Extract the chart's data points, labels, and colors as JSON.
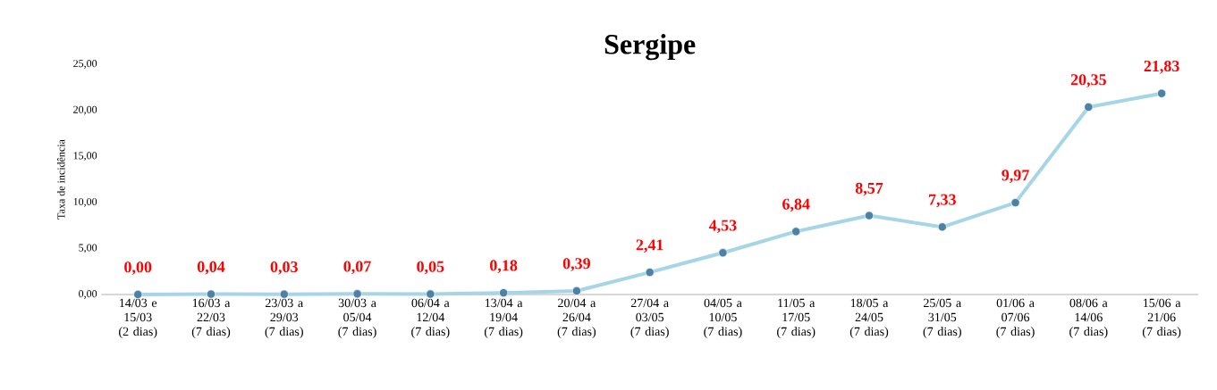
{
  "chart_data": {
    "type": "line",
    "title": "Sergipe",
    "ylabel": "Taxa de incidência",
    "categories": [
      "14/03 e 15/03 (2 dias)",
      "16/03 a 22/03 (7 dias)",
      "23/03 a 29/03 (7 dias)",
      "30/03 a 05/04 (7 dias)",
      "06/04 a 12/04 (7 dias)",
      "13/04 a 19/04 (7 dias)",
      "20/04 a 26/04 (7 dias)",
      "27/04 a 03/05 (7 dias)",
      "04/05 a 10/05 (7 dias)",
      "11/05 a 17/05 (7 dias)",
      "18/05 a 24/05 (7 dias)",
      "25/05 a 31/05 (7 dias)",
      "01/06 a 07/06 (7 dias)",
      "08/06 a 14/06 (7 dias)",
      "15/06 a 21/06 (7 dias)"
    ],
    "series": [
      {
        "color": "#a5d5e6",
        "values": [
          0.0,
          0.04,
          0.03,
          0.07,
          0.05,
          0.18,
          0.39,
          2.41,
          4.53,
          6.84,
          8.57,
          7.33,
          9.97,
          20.35,
          21.83
        ],
        "value_labels": [
          "0,00",
          "0,04",
          "0,03",
          "0,07",
          "0,05",
          "0,18",
          "0,39",
          "2,41",
          "4,53",
          "6,84",
          "8,57",
          "7,33",
          "9,97",
          "20,35",
          "21,83"
        ]
      }
    ],
    "ylim": [
      0,
      25
    ],
    "yticks": [
      {
        "value": 0,
        "label": "0,00"
      },
      {
        "value": 5,
        "label": "5,00"
      },
      {
        "value": 10,
        "label": "10,00"
      },
      {
        "value": 15,
        "label": "15,00"
      },
      {
        "value": 20,
        "label": "20,00"
      },
      {
        "value": 25,
        "label": "25,00"
      }
    ],
    "marker": "circle",
    "grid": false,
    "legend": false
  }
}
